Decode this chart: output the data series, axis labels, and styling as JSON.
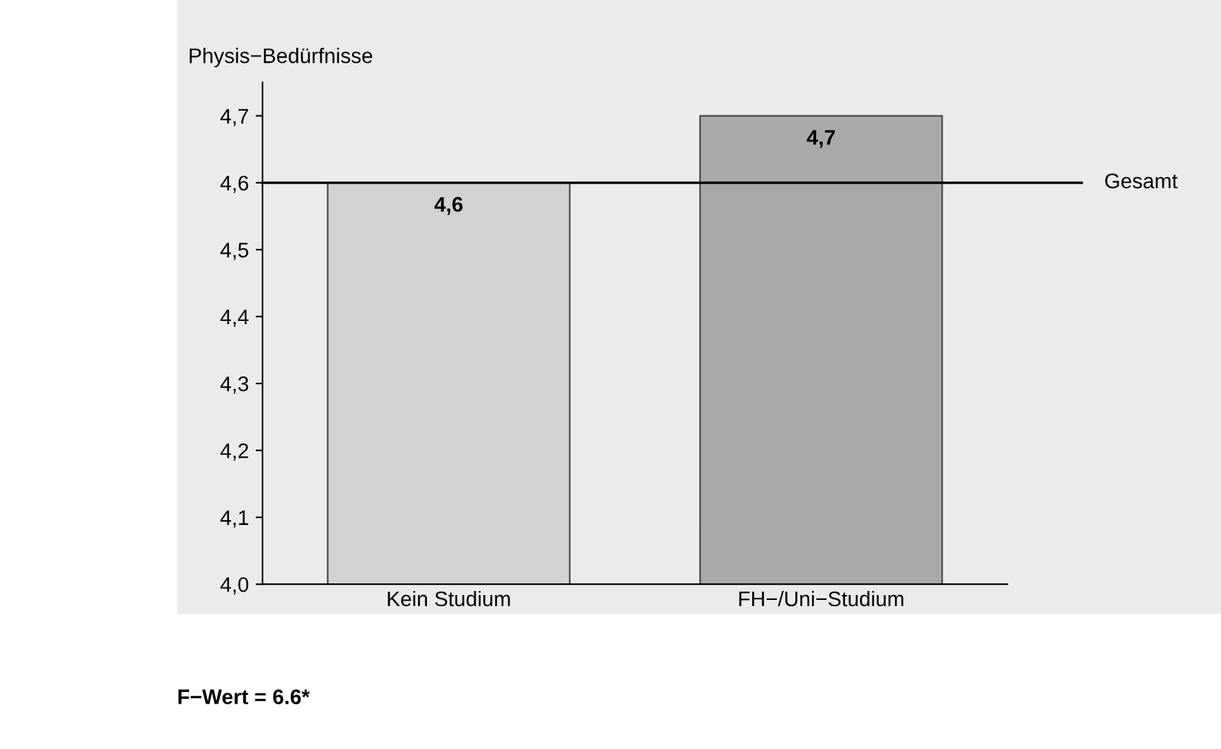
{
  "chart_data": {
    "type": "bar",
    "ylabel": "Physis−Bedürfnisse",
    "categories": [
      "Kein Studium",
      "FH−/Uni−Studium"
    ],
    "values": [
      4.6,
      4.7
    ],
    "colors": [
      "#d2d2d2",
      "#a9a9a9"
    ],
    "value_labels": [
      "4,6",
      "4,7"
    ],
    "ylim": [
      4.0,
      4.75
    ],
    "yticks": [
      {
        "value": 4.0,
        "label": "4,0"
      },
      {
        "value": 4.1,
        "label": "4,1"
      },
      {
        "value": 4.2,
        "label": "4,2"
      },
      {
        "value": 4.3,
        "label": "4,3"
      },
      {
        "value": 4.4,
        "label": "4,4"
      },
      {
        "value": 4.5,
        "label": "4,5"
      },
      {
        "value": 4.6,
        "label": "4,6"
      },
      {
        "value": 4.7,
        "label": "4,7"
      }
    ],
    "ref_lines": [
      {
        "axis": "y",
        "value": 4.6,
        "label": "Gesamt",
        "color": "#000000"
      }
    ],
    "annotations": [
      "F−Wert = 6.6*"
    ],
    "grid": false,
    "legend": false
  }
}
